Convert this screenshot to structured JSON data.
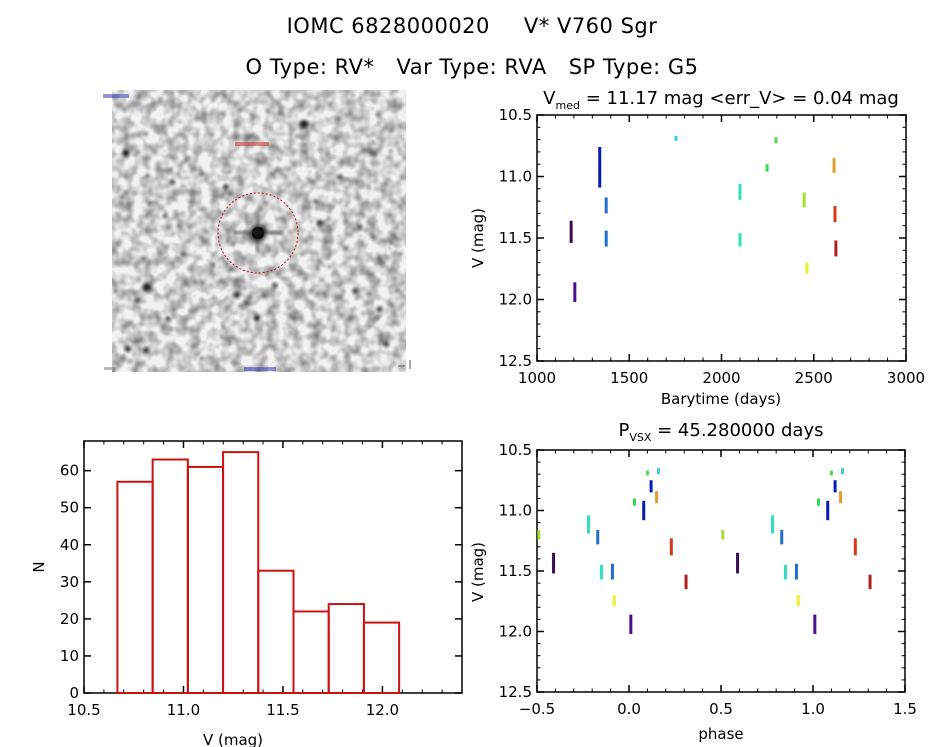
{
  "header": {
    "catalog_id": "IOMC 6828000020",
    "star_name": "V* V760 Sgr",
    "otype_label": "O Type: RV*",
    "vartype_label": "Var Type: RVA",
    "sptype_label": "SP Type: G5"
  },
  "image_panel": {
    "description": "grayscale sky field finding chart",
    "marker": "red dashed circle around target star",
    "marker_color": "#c0101a"
  },
  "colors": {
    "c_darkpurple": "#3c0a55",
    "c_purple": "#4a0f8a",
    "c_blue": "#0a1ab4",
    "c_midblue": "#1f6ed0",
    "c_lightcyan": "#3ec8e8",
    "c_teal": "#2ee0c0",
    "c_green": "#2edc5a",
    "c_lightgreen": "#5ad850",
    "c_yellowgreen": "#a8e030",
    "c_yellow": "#f0f030",
    "c_orange": "#e0a030",
    "c_redorange": "#d83818",
    "c_darkred": "#b02020",
    "hist": "#cc1111"
  },
  "chart_data": [
    {
      "id": "lightcurve",
      "type": "scatter",
      "title_main": "V",
      "title_sub": "med",
      "title_rest": " = 11.17 mag <err_V> = 0.04 mag",
      "xlabel": "Barytime (days)",
      "ylabel": "V (mag)",
      "xlim": [
        1000,
        3000
      ],
      "ylim": [
        12.5,
        10.5
      ],
      "xticks": [
        1000,
        1500,
        2000,
        2500,
        3000
      ],
      "xtick_labels": [
        "1000",
        "1500",
        "2000",
        "2500",
        "3000"
      ],
      "yticks": [
        10.5,
        11.0,
        11.5,
        12.0,
        12.5
      ],
      "ytick_labels": [
        "10.5",
        "11.0",
        "11.5",
        "12.0",
        "12.5"
      ],
      "note": "each segment is a season of observations; y_range = min/max V mag",
      "series": [
        {
          "name": "season-1",
          "color_key": "c_darkpurple",
          "x": 1185,
          "y_range": [
            11.36,
            11.54
          ]
        },
        {
          "name": "season-2",
          "color_key": "c_purple",
          "x": 1205,
          "y_range": [
            11.86,
            12.02
          ]
        },
        {
          "name": "season-3",
          "color_key": "c_blue",
          "x": 1340,
          "y_range": [
            10.76,
            11.09
          ]
        },
        {
          "name": "season-4a",
          "color_key": "c_midblue",
          "x": 1375,
          "y_range": [
            11.17,
            11.3
          ]
        },
        {
          "name": "season-4b",
          "color_key": "c_midblue",
          "x": 1375,
          "y_range": [
            11.44,
            11.57
          ]
        },
        {
          "name": "season-5",
          "color_key": "c_lightcyan",
          "x": 1753,
          "y_range": [
            10.67,
            10.71
          ]
        },
        {
          "name": "season-6a",
          "color_key": "c_teal",
          "x": 2100,
          "y_range": [
            11.06,
            11.19
          ]
        },
        {
          "name": "season-6b",
          "color_key": "c_teal",
          "x": 2100,
          "y_range": [
            11.46,
            11.57
          ]
        },
        {
          "name": "season-7",
          "color_key": "c_green",
          "x": 2247,
          "y_range": [
            10.9,
            10.96
          ]
        },
        {
          "name": "season-8",
          "color_key": "c_lightgreen",
          "x": 2295,
          "y_range": [
            10.68,
            10.73
          ]
        },
        {
          "name": "season-9",
          "color_key": "c_yellowgreen",
          "x": 2448,
          "y_range": [
            11.13,
            11.25
          ]
        },
        {
          "name": "season-10",
          "color_key": "c_yellow",
          "x": 2463,
          "y_range": [
            11.7,
            11.79
          ]
        },
        {
          "name": "season-11",
          "color_key": "c_orange",
          "x": 2610,
          "y_range": [
            10.85,
            10.97
          ]
        },
        {
          "name": "season-12",
          "color_key": "c_redorange",
          "x": 2615,
          "y_range": [
            11.24,
            11.37
          ]
        },
        {
          "name": "season-13",
          "color_key": "c_darkred",
          "x": 2620,
          "y_range": [
            11.52,
            11.65
          ]
        }
      ]
    },
    {
      "id": "histogram",
      "type": "bar",
      "title": "",
      "xlabel": "V (mag)",
      "ylabel": "N",
      "xlim": [
        10.5,
        12.4
      ],
      "ylim": [
        0,
        68
      ],
      "xticks": [
        10.5,
        11.0,
        11.5,
        12.0
      ],
      "xtick_labels": [
        "10.5",
        "11.0",
        "11.5",
        "12.0"
      ],
      "yticks": [
        0,
        10,
        20,
        30,
        40,
        50,
        60
      ],
      "ytick_labels": [
        "0",
        "10",
        "20",
        "30",
        "40",
        "50",
        "60"
      ],
      "bin_edges": [
        10.668,
        10.845,
        11.022,
        11.199,
        11.376,
        11.553,
        11.73,
        11.907,
        12.084
      ],
      "values": [
        57,
        63,
        61,
        65,
        33,
        22,
        24,
        19
      ]
    },
    {
      "id": "phased",
      "type": "scatter",
      "title_main": "P",
      "title_sub": "VSX",
      "title_rest": " = 45.280000 days",
      "xlabel": "phase",
      "ylabel": "V (mag)",
      "xlim": [
        -0.5,
        1.5
      ],
      "ylim": [
        12.5,
        10.5
      ],
      "xticks": [
        -0.5,
        0.0,
        0.5,
        1.0,
        1.5
      ],
      "xtick_labels": [
        "−0.5",
        "0.0",
        "0.5",
        "1.0",
        "1.5"
      ],
      "yticks": [
        10.5,
        11.0,
        11.5,
        12.0,
        12.5
      ],
      "ytick_labels": [
        "10.5",
        "11.0",
        "11.5",
        "12.0",
        "12.5"
      ],
      "note": "plotted twice: at phase and phase+1",
      "series": [
        {
          "name": "season-9",
          "color_key": "c_yellowgreen",
          "x": -0.49,
          "y_range": [
            11.16,
            11.24
          ]
        },
        {
          "name": "season-1",
          "color_key": "c_darkpurple",
          "x": -0.41,
          "y_range": [
            11.35,
            11.52
          ]
        },
        {
          "name": "season-6a",
          "color_key": "c_teal",
          "x": -0.22,
          "y_range": [
            11.04,
            11.19
          ]
        },
        {
          "name": "season-4a",
          "color_key": "c_midblue",
          "x": -0.17,
          "y_range": [
            11.16,
            11.28
          ]
        },
        {
          "name": "season-6b",
          "color_key": "c_teal",
          "x": -0.15,
          "y_range": [
            11.45,
            11.57
          ]
        },
        {
          "name": "season-4b",
          "color_key": "c_midblue",
          "x": -0.09,
          "y_range": [
            11.44,
            11.57
          ]
        },
        {
          "name": "season-10",
          "color_key": "c_yellow",
          "x": -0.08,
          "y_range": [
            11.7,
            11.79
          ]
        },
        {
          "name": "season-2",
          "color_key": "c_purple",
          "x": 0.01,
          "y_range": [
            11.86,
            12.02
          ]
        },
        {
          "name": "season-7",
          "color_key": "c_green",
          "x": 0.03,
          "y_range": [
            10.9,
            10.96
          ]
        },
        {
          "name": "season-3a",
          "color_key": "c_blue",
          "x": 0.08,
          "y_range": [
            10.92,
            11.08
          ]
        },
        {
          "name": "season-3b",
          "color_key": "c_blue",
          "x": 0.12,
          "y_range": [
            10.75,
            10.85
          ]
        },
        {
          "name": "season-8",
          "color_key": "c_lightgreen",
          "x": 0.1,
          "y_range": [
            10.67,
            10.71
          ]
        },
        {
          "name": "season-5",
          "color_key": "c_lightcyan",
          "x": 0.16,
          "y_range": [
            10.65,
            10.7
          ]
        },
        {
          "name": "season-11",
          "color_key": "c_orange",
          "x": 0.15,
          "y_range": [
            10.84,
            10.94
          ]
        },
        {
          "name": "season-12",
          "color_key": "c_redorange",
          "x": 0.23,
          "y_range": [
            11.23,
            11.37
          ]
        },
        {
          "name": "season-13",
          "color_key": "c_darkred",
          "x": 0.31,
          "y_range": [
            11.53,
            11.65
          ]
        }
      ]
    }
  ]
}
